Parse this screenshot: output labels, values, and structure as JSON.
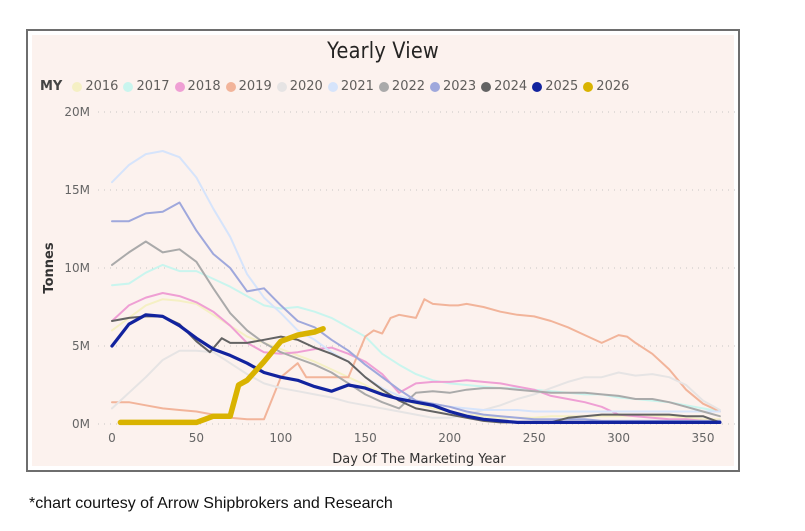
{
  "chart_data": {
    "type": "line",
    "title": "Yearly View",
    "xlabel": "Day Of The Marketing Year",
    "ylabel": "Tonnes",
    "xlim": [
      -5,
      365
    ],
    "ylim": [
      0,
      20000000
    ],
    "xticks": [
      0,
      50,
      100,
      150,
      200,
      250,
      300,
      350
    ],
    "xtick_labels": [
      "0",
      "50",
      "100",
      "150",
      "200",
      "250",
      "300",
      "350"
    ],
    "yticks": [
      0,
      5000000,
      10000000,
      15000000,
      20000000
    ],
    "ytick_labels": [
      "0M",
      "5M",
      "10M",
      "15M",
      "20M"
    ],
    "grid": "horizontal-dotted",
    "legend_title": "MY",
    "legend_position": "top-left",
    "series": [
      {
        "name": "2016",
        "color": "#f5f0c4",
        "x": [
          0,
          10,
          20,
          30,
          40,
          50,
          60,
          70,
          80,
          90,
          100,
          110,
          120,
          130,
          140,
          150,
          160,
          170,
          180,
          190,
          200,
          210,
          220,
          230,
          240,
          250,
          260,
          270,
          280,
          290,
          300,
          310,
          320,
          330,
          340,
          350,
          360
        ],
        "values": [
          6.0,
          6.8,
          7.6,
          8.0,
          7.9,
          7.7,
          7.0,
          6.3,
          5.6,
          5.2,
          4.8,
          4.4,
          4.0,
          3.5,
          3.0,
          2.5,
          2.0,
          1.6,
          1.3,
          1.0,
          0.8,
          0.6,
          0.5,
          0.4,
          0.4,
          0.4,
          0.5,
          0.5,
          0.5,
          0.5,
          0.5,
          0.5,
          0.5,
          0.5,
          0.4,
          0.3,
          0.3
        ]
      },
      {
        "name": "2017",
        "color": "#c9f5ee",
        "x": [
          0,
          10,
          20,
          30,
          40,
          50,
          60,
          70,
          80,
          90,
          100,
          110,
          120,
          130,
          140,
          150,
          160,
          170,
          180,
          190,
          200,
          210,
          220,
          230,
          240,
          250,
          260,
          270,
          280,
          290,
          300,
          310,
          320,
          330,
          340,
          350,
          360
        ],
        "values": [
          8.9,
          9.0,
          9.7,
          10.2,
          9.8,
          9.8,
          9.3,
          8.8,
          8.2,
          7.6,
          7.4,
          7.5,
          7.2,
          6.8,
          6.2,
          5.6,
          4.5,
          3.8,
          3.2,
          2.8,
          2.6,
          2.5,
          2.4,
          2.3,
          2.3,
          2.2,
          2.1,
          2.0,
          1.9,
          1.9,
          1.7,
          1.6,
          1.5,
          1.4,
          1.2,
          1.0,
          0.8
        ]
      },
      {
        "name": "2018",
        "color": "#ef9fd4",
        "x": [
          0,
          10,
          20,
          30,
          40,
          50,
          60,
          70,
          80,
          90,
          100,
          110,
          120,
          130,
          140,
          150,
          160,
          170,
          180,
          190,
          200,
          210,
          220,
          230,
          240,
          250,
          260,
          270,
          280,
          290,
          300,
          310,
          320,
          330,
          340,
          350,
          360
        ],
        "values": [
          6.6,
          7.6,
          8.1,
          8.4,
          8.2,
          7.8,
          7.2,
          6.3,
          5.2,
          4.6,
          4.5,
          4.6,
          4.8,
          4.9,
          4.5,
          4.0,
          3.2,
          2.0,
          2.6,
          2.7,
          2.7,
          2.8,
          2.7,
          2.6,
          2.4,
          2.2,
          1.8,
          1.6,
          1.4,
          1.1,
          0.6,
          0.5,
          0.4,
          0.3,
          0.3,
          0.2,
          0.2
        ]
      },
      {
        "name": "2019",
        "color": "#f2b49a",
        "x": [
          0,
          10,
          20,
          30,
          40,
          50,
          60,
          70,
          80,
          90,
          100,
          110,
          115,
          120,
          130,
          140,
          150,
          155,
          160,
          165,
          170,
          175,
          180,
          185,
          190,
          200,
          205,
          210,
          220,
          230,
          240,
          250,
          260,
          270,
          280,
          290,
          300,
          305,
          310,
          320,
          330,
          340,
          350,
          360
        ],
        "values": [
          1.4,
          1.4,
          1.2,
          1.0,
          0.9,
          0.8,
          0.6,
          0.4,
          0.3,
          0.3,
          3.0,
          3.9,
          3.0,
          3.0,
          3.0,
          3.0,
          5.6,
          6.0,
          5.8,
          6.8,
          7.0,
          6.9,
          6.8,
          8.0,
          7.7,
          7.6,
          7.6,
          7.7,
          7.5,
          7.2,
          7.0,
          6.9,
          6.6,
          6.2,
          5.7,
          5.2,
          5.7,
          5.6,
          5.2,
          4.5,
          3.5,
          2.2,
          1.3,
          0.8
        ]
      },
      {
        "name": "2020",
        "color": "#e6e4e4",
        "x": [
          0,
          10,
          20,
          30,
          40,
          50,
          60,
          70,
          80,
          90,
          100,
          110,
          120,
          130,
          140,
          150,
          160,
          170,
          180,
          190,
          200,
          210,
          220,
          230,
          240,
          250,
          260,
          270,
          280,
          290,
          300,
          310,
          320,
          330,
          340,
          350,
          360
        ],
        "values": [
          1.0,
          2.0,
          3.0,
          4.1,
          4.7,
          4.7,
          4.6,
          3.9,
          3.2,
          2.6,
          2.3,
          2.1,
          1.9,
          1.7,
          1.4,
          1.2,
          1.0,
          0.8,
          0.6,
          0.4,
          0.4,
          0.6,
          0.9,
          1.2,
          1.6,
          1.9,
          2.3,
          2.7,
          3.0,
          3.0,
          3.3,
          3.1,
          3.2,
          3.0,
          2.5,
          1.5,
          0.9
        ]
      },
      {
        "name": "2021",
        "color": "#d6e4fb",
        "x": [
          0,
          10,
          20,
          30,
          40,
          50,
          60,
          70,
          80,
          90,
          100,
          110,
          120,
          130,
          140,
          150,
          160,
          170,
          180,
          190,
          200,
          210,
          220,
          230,
          240,
          250,
          260,
          270,
          280,
          290,
          300,
          310,
          320,
          330,
          340,
          350,
          360
        ],
        "values": [
          15.5,
          16.6,
          17.3,
          17.5,
          17.1,
          15.8,
          13.8,
          12.0,
          9.6,
          8.1,
          7.1,
          6.0,
          5.4,
          4.6,
          4.0,
          3.0,
          2.3,
          1.8,
          1.5,
          1.3,
          1.1,
          1.0,
          0.9,
          0.9,
          0.9,
          0.8,
          0.8,
          0.8,
          0.8,
          0.8,
          0.8,
          0.8,
          0.8,
          0.8,
          0.8,
          0.8,
          0.8
        ]
      },
      {
        "name": "2022",
        "color": "#aaaaaa",
        "x": [
          0,
          10,
          20,
          30,
          40,
          50,
          60,
          70,
          80,
          90,
          100,
          110,
          120,
          130,
          140,
          150,
          160,
          170,
          180,
          190,
          200,
          210,
          220,
          230,
          240,
          250,
          260,
          270,
          280,
          290,
          300,
          310,
          320,
          330,
          340,
          350,
          360
        ],
        "values": [
          10.2,
          11.0,
          11.7,
          11.0,
          11.2,
          10.4,
          8.7,
          7.1,
          6.0,
          5.2,
          4.6,
          4.2,
          3.8,
          3.3,
          2.6,
          1.9,
          1.4,
          1.0,
          2.0,
          2.1,
          2.0,
          2.2,
          2.3,
          2.3,
          2.2,
          2.1,
          2.0,
          2.0,
          2.0,
          1.9,
          1.8,
          1.6,
          1.6,
          1.4,
          1.1,
          0.8,
          0.5
        ]
      },
      {
        "name": "2023",
        "color": "#9fa8dc",
        "x": [
          0,
          10,
          20,
          30,
          40,
          50,
          60,
          70,
          80,
          90,
          100,
          110,
          120,
          130,
          140,
          150,
          160,
          170,
          180,
          190,
          200,
          210,
          220,
          230,
          240,
          250,
          260,
          270,
          280,
          290,
          300,
          310,
          320,
          330,
          340,
          350,
          360
        ],
        "values": [
          13.0,
          13.0,
          13.5,
          13.6,
          14.2,
          12.4,
          10.9,
          10.0,
          8.5,
          8.7,
          7.6,
          6.6,
          6.2,
          5.4,
          4.7,
          3.8,
          3.0,
          2.2,
          1.5,
          1.3,
          1.1,
          0.8,
          0.6,
          0.5,
          0.4,
          0.3,
          0.3,
          0.3,
          0.3,
          0.2,
          0.2,
          0.2,
          0.2,
          0.2,
          0.2,
          0.2,
          0.2
        ]
      },
      {
        "name": "2024",
        "color": "#636363",
        "x": [
          0,
          10,
          20,
          30,
          40,
          50,
          58,
          65,
          70,
          80,
          90,
          100,
          110,
          120,
          130,
          140,
          150,
          160,
          170,
          180,
          190,
          200,
          210,
          220,
          230,
          240,
          250,
          260,
          270,
          280,
          290,
          300,
          310,
          320,
          330,
          340,
          350,
          360
        ],
        "values": [
          6.6,
          6.8,
          6.9,
          6.9,
          6.4,
          5.3,
          4.6,
          5.5,
          5.2,
          5.2,
          5.4,
          5.6,
          5.4,
          4.9,
          4.5,
          4.0,
          3.0,
          2.2,
          1.5,
          1.0,
          0.8,
          0.6,
          0.4,
          0.2,
          0.1,
          0.1,
          0.1,
          0.1,
          0.4,
          0.5,
          0.6,
          0.6,
          0.6,
          0.6,
          0.6,
          0.5,
          0.5,
          0.1
        ]
      },
      {
        "name": "2025",
        "color": "#12239e",
        "x": [
          0,
          10,
          20,
          30,
          40,
          50,
          60,
          70,
          80,
          90,
          100,
          110,
          120,
          130,
          140,
          150,
          160,
          170,
          180,
          190,
          200,
          210,
          220,
          230,
          240,
          250,
          260,
          270,
          280,
          290,
          300,
          310,
          320,
          330,
          340,
          350,
          360
        ],
        "values": [
          5.0,
          6.4,
          7.0,
          6.9,
          6.3,
          5.5,
          4.8,
          4.4,
          3.9,
          3.3,
          3.0,
          2.8,
          2.4,
          2.1,
          2.5,
          2.3,
          1.9,
          1.6,
          1.4,
          1.2,
          0.8,
          0.5,
          0.3,
          0.2,
          0.1,
          0.1,
          0.1,
          0.1,
          0.1,
          0.1,
          0.1,
          0.1,
          0.1,
          0.1,
          0.1,
          0.1,
          0.1
        ]
      },
      {
        "name": "2026",
        "color": "#d9b300",
        "x": [
          5,
          10,
          20,
          30,
          40,
          50,
          55,
          60,
          65,
          70,
          75,
          80,
          90,
          100,
          105,
          110,
          115,
          120,
          125
        ],
        "values": [
          0.1,
          0.1,
          0.1,
          0.1,
          0.1,
          0.1,
          0.3,
          0.5,
          0.5,
          0.5,
          2.5,
          2.8,
          4.0,
          5.3,
          5.5,
          5.7,
          5.8,
          5.9,
          6.1
        ]
      }
    ],
    "value_unit": "millions of tonnes"
  },
  "footnote": "*chart courtesy of Arrow Shipbrokers and Research"
}
